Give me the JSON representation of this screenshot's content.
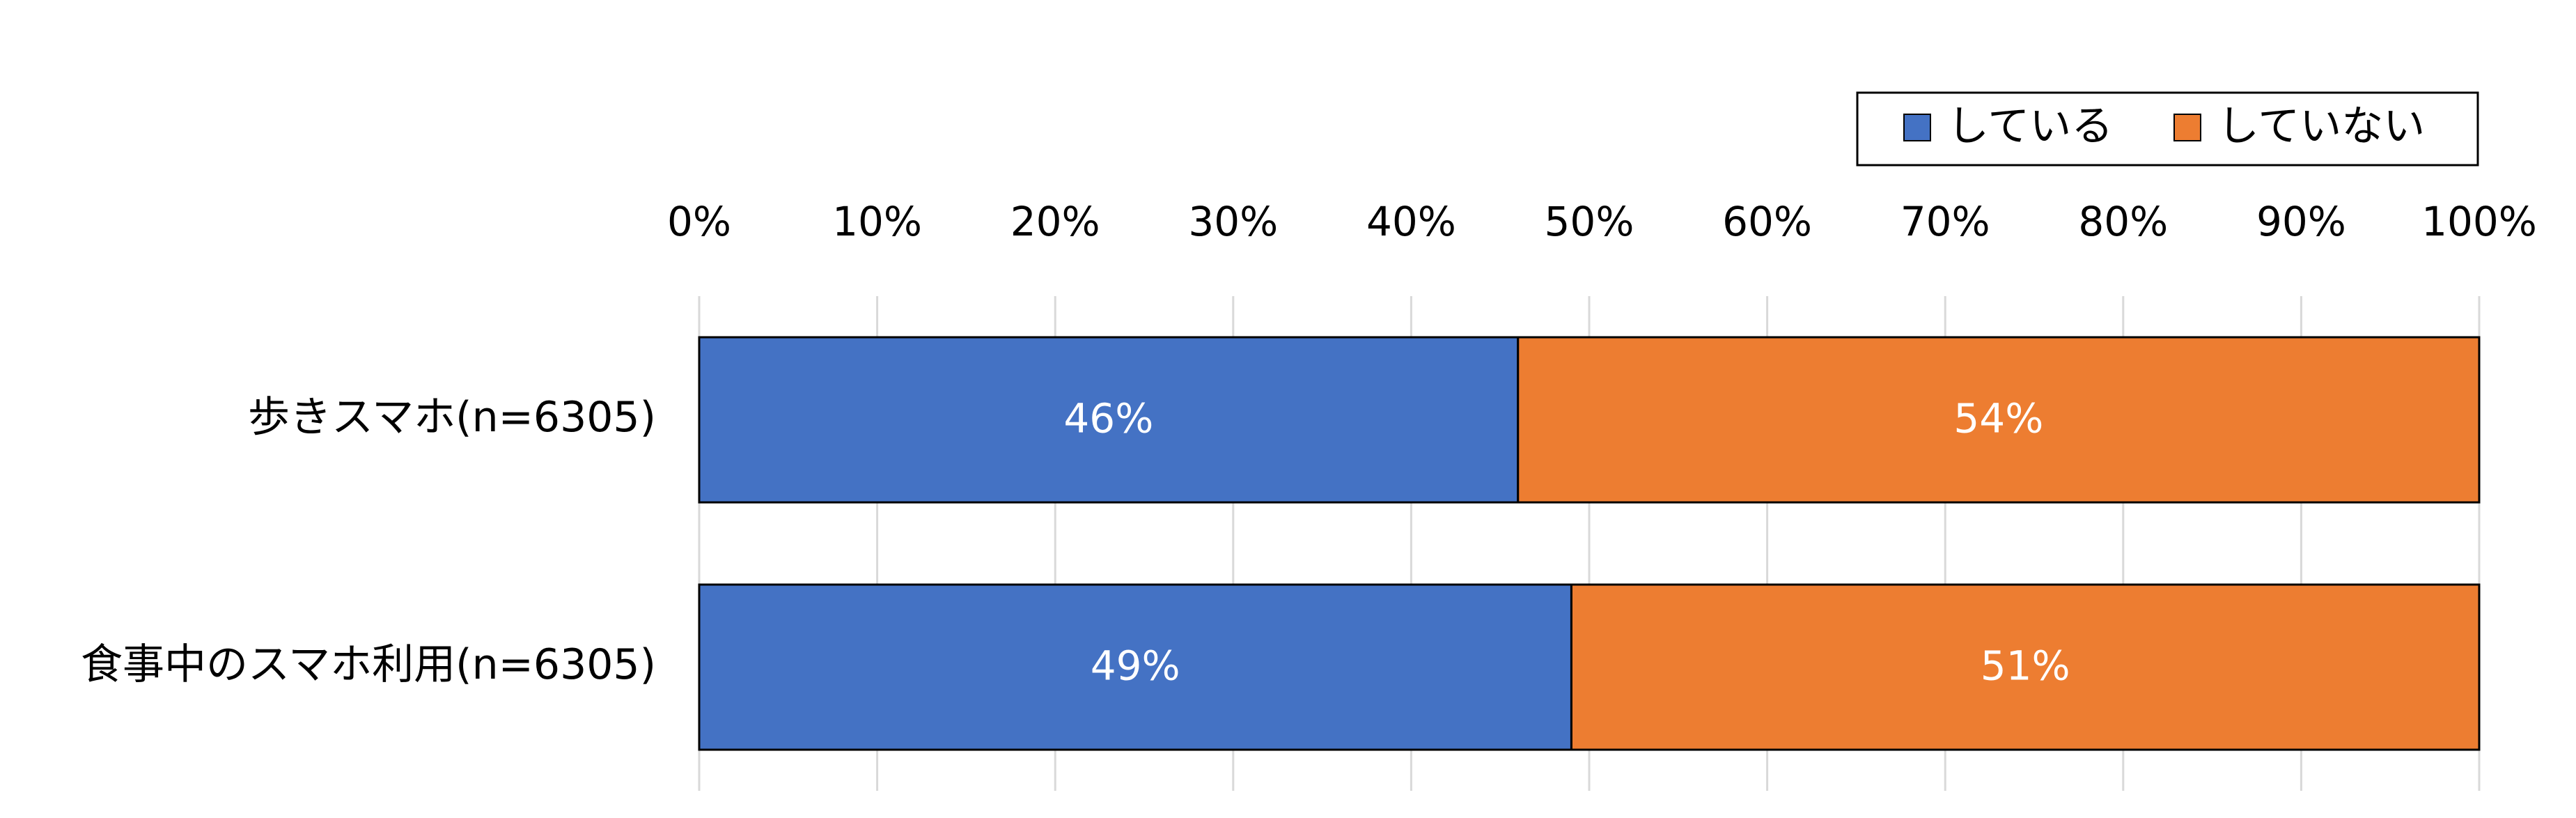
{
  "chart_data": {
    "type": "bar",
    "orientation": "horizontal",
    "stacked": "percent",
    "categories": [
      "歩きスマホ(n=6305)",
      "食事中のスマホ利用(n=6305)"
    ],
    "series": [
      {
        "name": "している",
        "values": [
          46,
          49
        ],
        "labels": [
          "46%",
          "49%"
        ],
        "color": "#4472c4"
      },
      {
        "name": "していない",
        "values": [
          54,
          51
        ],
        "labels": [
          "54%",
          "51%"
        ],
        "color": "#ed7d31"
      }
    ],
    "xlim": [
      0,
      100
    ],
    "x_ticks": [
      "0%",
      "10%",
      "20%",
      "30%",
      "40%",
      "50%",
      "60%",
      "70%",
      "80%",
      "90%",
      "100%"
    ],
    "x_axis_position": "top",
    "grid": true,
    "legend_position": "top-right",
    "title": "",
    "xlabel": "",
    "ylabel": ""
  }
}
